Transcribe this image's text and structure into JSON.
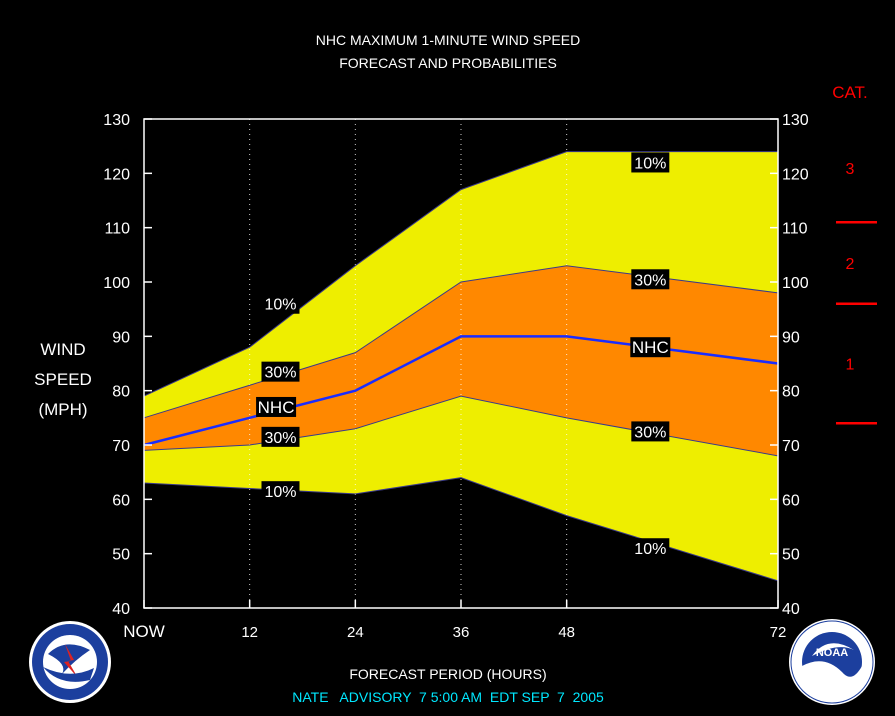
{
  "chart_data": {
    "type": "area",
    "title": "NHC MAXIMUM 1-MINUTE WIND SPEED",
    "subtitle": "FORECAST AND PROBABILITIES",
    "ylabel_lines": [
      "WIND",
      "SPEED",
      "(MPH)"
    ],
    "xlabel": "FORECAST PERIOD (HOURS)",
    "footer": "NATE   ADVISORY  7 5:00 AM  EDT SEP  7  2005",
    "x_ticks": [
      {
        "x": 0,
        "label": "NOW"
      },
      {
        "x": 12,
        "label": "12"
      },
      {
        "x": 24,
        "label": "24"
      },
      {
        "x": 36,
        "label": "36"
      },
      {
        "x": 48,
        "label": "48"
      },
      {
        "x": 72,
        "label": "72"
      }
    ],
    "xlim": [
      0,
      72
    ],
    "ylim": [
      40,
      130
    ],
    "y_ticks": [
      40,
      50,
      60,
      70,
      80,
      90,
      100,
      110,
      120,
      130
    ],
    "dotted_vertical_grid_at": [
      12,
      24,
      36,
      48
    ],
    "x": [
      0,
      12,
      24,
      36,
      48,
      72
    ],
    "series": [
      {
        "name": "10%",
        "role": "upper_10",
        "values": [
          79,
          88,
          103,
          117,
          124,
          124
        ]
      },
      {
        "name": "30%",
        "role": "upper_30",
        "values": [
          75,
          81,
          87,
          100,
          103,
          98
        ]
      },
      {
        "name": "NHC",
        "role": "nhc",
        "values": [
          70,
          75,
          80,
          90,
          90,
          85
        ]
      },
      {
        "name": "30%",
        "role": "lower_30",
        "values": [
          69,
          70,
          73,
          79,
          75,
          68
        ]
      },
      {
        "name": "10%",
        "role": "lower_10",
        "values": [
          63,
          62,
          61,
          64,
          57,
          45
        ]
      }
    ],
    "labels": [
      {
        "text": "10%",
        "x": 15.5,
        "y": 96
      },
      {
        "text": "30%",
        "x": 15.5,
        "y": 83.5
      },
      {
        "text": "NHC",
        "x": 15,
        "y": 77
      },
      {
        "text": "30%",
        "x": 15.5,
        "y": 71.5
      },
      {
        "text": "10%",
        "x": 15.5,
        "y": 61.5
      },
      {
        "text": "10%",
        "x": 57.5,
        "y": 122
      },
      {
        "text": "30%",
        "x": 57.5,
        "y": 100.5
      },
      {
        "text": "NHC",
        "x": 57.5,
        "y": 88
      },
      {
        "text": "30%",
        "x": 57.5,
        "y": 72.5
      },
      {
        "text": "10%",
        "x": 57.5,
        "y": 51
      }
    ],
    "category_scale": {
      "heading": "CAT.",
      "boundaries": [
        74,
        96,
        111
      ],
      "labels": [
        {
          "text": "1",
          "y": 85
        },
        {
          "text": "2",
          "y": 103.5
        },
        {
          "text": "3",
          "y": 121
        }
      ]
    },
    "colors": {
      "outer_band": "#eeee00",
      "inner_band": "#ff8800",
      "nhc_line": "#1a2cff",
      "category": "#ff0000",
      "footer": "#00e8ff",
      "text": "#ffffff"
    }
  },
  "logos": {
    "left": {
      "name": "NATIONAL WEATHER SERVICE"
    },
    "right": {
      "name": "NOAA",
      "text": "NOAA"
    }
  }
}
